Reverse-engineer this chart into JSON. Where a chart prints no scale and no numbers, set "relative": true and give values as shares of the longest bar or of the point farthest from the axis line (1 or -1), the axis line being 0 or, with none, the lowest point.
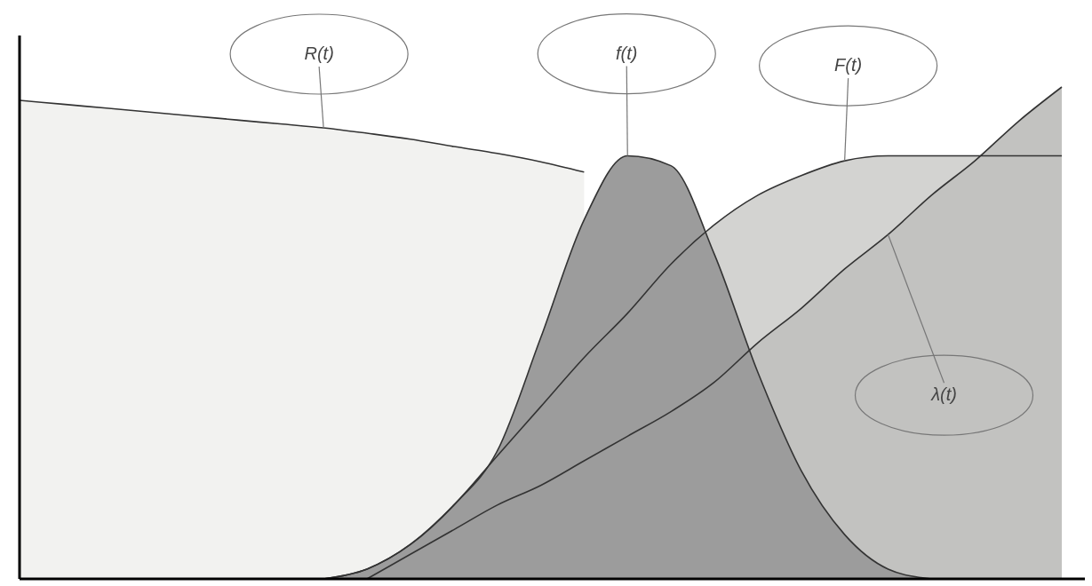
{
  "chart_data": {
    "type": "area",
    "relative": true,
    "categories": [
      null,
      null,
      null,
      null,
      null,
      null,
      null,
      null,
      null,
      null,
      null,
      null,
      null,
      null,
      null,
      null,
      null,
      null,
      null,
      null,
      null,
      null,
      null,
      null,
      null
    ],
    "series": [
      {
        "name": "R(t)",
        "color": "#f2f2f0",
        "values": [
          0.973,
          0.965,
          0.957,
          0.949,
          0.941,
          0.933,
          0.925,
          0.917,
          0.906,
          0.894,
          0.879,
          0.865,
          0.848,
          0.827,
          null,
          null,
          null,
          null,
          null,
          null,
          null,
          null,
          null,
          null,
          null
        ]
      },
      {
        "name": "F(t)",
        "color": "#d3d3d1",
        "values": [
          null,
          null,
          null,
          null,
          null,
          null,
          null,
          0,
          0.02,
          0.07,
          0.15,
          0.25,
          0.35,
          0.45,
          0.54,
          0.64,
          0.72,
          0.78,
          0.82,
          0.85,
          0.86,
          0.86,
          0.86,
          0.86,
          0.86
        ]
      },
      {
        "name": "λ(t)",
        "color": "#c2c2c0",
        "values": [
          null,
          null,
          null,
          null,
          null,
          null,
          null,
          null,
          0,
          0.05,
          0.1,
          0.15,
          0.19,
          0.24,
          0.29,
          0.34,
          0.4,
          0.48,
          0.55,
          0.63,
          0.7,
          0.78,
          0.85,
          0.93,
          1
        ]
      },
      {
        "name": "f(t)",
        "color": "#9c9c9c",
        "values": [
          null,
          null,
          null,
          null,
          null,
          null,
          null,
          0,
          0.02,
          0.07,
          0.15,
          0.26,
          0.49,
          0.73,
          0.86,
          0.84,
          0.66,
          0.42,
          0.22,
          0.09,
          0.02,
          0,
          null,
          null,
          null
        ]
      }
    ]
  }
}
